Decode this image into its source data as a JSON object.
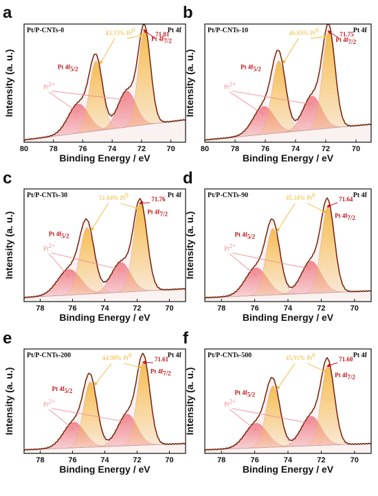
{
  "colors": {
    "envelope": "#7a2a10",
    "pt0_fill": "#f6bd4f",
    "pt2_fill": "#f07c86",
    "pt0_text": "#f2b632",
    "pt2_text": "#f08d91",
    "peak_label": "#c0171e",
    "background_fill": "#f7e7e7"
  },
  "chart_data": [
    {
      "type": "area",
      "panel_letter": "a",
      "sample": "Pt/P-CNTs-0",
      "corner_label": "Pt 4f",
      "xlabel": "Binding Energy / eV",
      "ylabel": "Intensity (a. u.)",
      "xlim": [
        80,
        69
      ],
      "x_ticks": [
        80,
        78,
        76,
        74,
        72,
        70
      ],
      "pt0_percent": "43.33%",
      "pt0_label": "Pt",
      "pt0_sup": "0",
      "pt2_label": "Pt",
      "pt2_sup": "2+",
      "peak_label_4f5": "Pt 4f",
      "peak_label_4f5_sub": "5/2",
      "peak_label_4f7": "Pt 4f",
      "peak_label_4f7_sub": "7/2",
      "peak_value": "71.81",
      "baseline": {
        "at80": 0.02,
        "at69": 0.2
      },
      "peaks": {
        "pt0": [
          {
            "center": 71.8,
            "height": 0.84,
            "sigma": 0.42
          },
          {
            "center": 75.1,
            "height": 0.62,
            "sigma": 0.45
          }
        ],
        "pt2": [
          {
            "center": 73.0,
            "height": 0.32,
            "sigma": 0.62
          },
          {
            "center": 76.3,
            "height": 0.26,
            "sigma": 0.7
          }
        ]
      }
    },
    {
      "type": "area",
      "panel_letter": "b",
      "sample": "Pt/P-CNTs-10",
      "corner_label": "Pt 4f",
      "xlabel": "Binding Energy / eV",
      "ylabel": "Intensity (a. u.)",
      "xlim": [
        80,
        69
      ],
      "x_ticks": [
        80,
        78,
        76,
        74,
        72,
        70
      ],
      "pt0_percent": "46.85%",
      "pt0_label": "Pt",
      "pt0_sup": "0",
      "pt2_label": "Pt",
      "pt2_sup": "2+",
      "peak_label_4f5": "Pt 4f",
      "peak_label_4f5_sub": "5/2",
      "peak_label_4f7": "Pt 4f",
      "peak_label_4f7_sub": "7/2",
      "peak_value": "71.75",
      "baseline": {
        "at80": 0.02,
        "at69": 0.16
      },
      "peaks": {
        "pt0": [
          {
            "center": 71.8,
            "height": 0.86,
            "sigma": 0.42
          },
          {
            "center": 75.1,
            "height": 0.64,
            "sigma": 0.45
          }
        ],
        "pt2": [
          {
            "center": 72.9,
            "height": 0.3,
            "sigma": 0.62
          },
          {
            "center": 76.1,
            "height": 0.25,
            "sigma": 0.7
          }
        ]
      }
    },
    {
      "type": "area",
      "panel_letter": "c",
      "sample": "Pt/P-CNTs-30",
      "corner_label": "Pt 4f",
      "xlabel": "Binding Energy / eV",
      "ylabel": "Intensity (a. u.)",
      "xlim": [
        79,
        69
      ],
      "x_ticks": [
        78,
        76,
        74,
        72,
        70
      ],
      "pt0_percent": "51.64%",
      "pt0_label": "Pt",
      "pt0_sup": "0",
      "pt2_label": "Pt",
      "pt2_sup": "2+",
      "peak_label_4f5": "Pt 4f",
      "peak_label_4f5_sub": "5/2",
      "peak_label_4f7": "Pt 4f",
      "peak_label_4f7_sub": "7/2",
      "peak_value": "71.76",
      "baseline": {
        "at80": 0.03,
        "at69": 0.12
      },
      "peaks": {
        "pt0": [
          {
            "center": 71.8,
            "height": 0.82,
            "sigma": 0.42
          },
          {
            "center": 75.1,
            "height": 0.62,
            "sigma": 0.45
          }
        ],
        "pt2": [
          {
            "center": 73.0,
            "height": 0.28,
            "sigma": 0.6
          },
          {
            "center": 76.2,
            "height": 0.24,
            "sigma": 0.72
          }
        ]
      }
    },
    {
      "type": "area",
      "panel_letter": "d",
      "sample": "Pt/P-CNTs-90",
      "corner_label": "Pt 4f",
      "xlabel": "Binding Energy / eV",
      "ylabel": "Intensity (a. u.)",
      "xlim": [
        79,
        69
      ],
      "x_ticks": [
        78,
        76,
        74,
        72,
        70
      ],
      "pt0_percent": "45.34%",
      "pt0_label": "Pt",
      "pt0_sup": "0",
      "pt2_label": "Pt",
      "pt2_sup": "2+",
      "peak_label_4f5": "Pt 4f",
      "peak_label_4f5_sub": "5/2",
      "peak_label_4f7": "Pt 4f",
      "peak_label_4f7_sub": "7/2",
      "peak_value": "71.64",
      "baseline": {
        "at80": 0.03,
        "at69": 0.1
      },
      "peaks": {
        "pt0": [
          {
            "center": 71.6,
            "height": 0.8,
            "sigma": 0.4
          },
          {
            "center": 74.9,
            "height": 0.62,
            "sigma": 0.42
          }
        ],
        "pt2": [
          {
            "center": 72.6,
            "height": 0.3,
            "sigma": 0.6
          },
          {
            "center": 75.9,
            "height": 0.26,
            "sigma": 0.66
          }
        ]
      }
    },
    {
      "type": "area",
      "panel_letter": "e",
      "sample": "Pt/P-CNTs-200",
      "corner_label": "Pt 4f",
      "xlabel": "Binding Energy / eV",
      "ylabel": "Intensity (a. u.)",
      "xlim": [
        79,
        69
      ],
      "x_ticks": [
        78,
        76,
        74,
        72,
        70
      ],
      "pt0_percent": "44.98%",
      "pt0_label": "Pt",
      "pt0_sup": "0",
      "pt2_label": "Pt",
      "pt2_sup": "2+",
      "peak_label_4f5": "Pt 4f",
      "peak_label_4f5_sub": "5/2",
      "peak_label_4f7": "Pt 4f",
      "peak_label_4f7_sub": "7/2",
      "peak_value": "71.61",
      "baseline": {
        "at80": 0.03,
        "at69": 0.1
      },
      "peaks": {
        "pt0": [
          {
            "center": 71.6,
            "height": 0.84,
            "sigma": 0.4
          },
          {
            "center": 74.9,
            "height": 0.66,
            "sigma": 0.42
          }
        ],
        "pt2": [
          {
            "center": 72.6,
            "height": 0.32,
            "sigma": 0.6
          },
          {
            "center": 75.9,
            "height": 0.26,
            "sigma": 0.66
          }
        ]
      }
    },
    {
      "type": "area",
      "panel_letter": "f",
      "sample": "Pt/P-CNTs-500",
      "corner_label": "Pt 4f",
      "xlabel": "Binding Energy / eV",
      "ylabel": "Intensity (a. u.)",
      "xlim": [
        79,
        69
      ],
      "x_ticks": [
        78,
        76,
        74,
        72,
        70
      ],
      "pt0_percent": "45.91%",
      "pt0_label": "Pt",
      "pt0_sup": "0",
      "pt2_label": "Pt",
      "pt2_sup": "2+",
      "peak_label_4f5": "Pt 4f",
      "peak_label_4f5_sub": "5/2",
      "peak_label_4f7": "Pt 4f",
      "peak_label_4f7_sub": "7/2",
      "peak_value": "71.60",
      "baseline": {
        "at80": 0.03,
        "at69": 0.1
      },
      "peaks": {
        "pt0": [
          {
            "center": 71.6,
            "height": 0.8,
            "sigma": 0.4
          },
          {
            "center": 74.9,
            "height": 0.62,
            "sigma": 0.42
          }
        ],
        "pt2": [
          {
            "center": 72.6,
            "height": 0.3,
            "sigma": 0.6
          },
          {
            "center": 75.9,
            "height": 0.25,
            "sigma": 0.66
          }
        ]
      }
    }
  ]
}
